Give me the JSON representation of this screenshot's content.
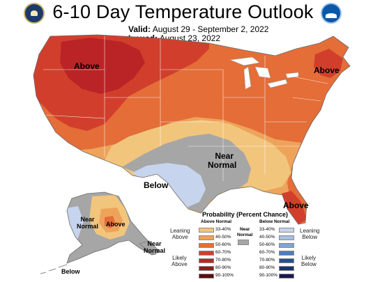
{
  "header": {
    "title": "6-10 Day Temperature Outlook",
    "valid_label": "Valid:",
    "valid_value": "August 29 - September 2, 2022",
    "issued_label": "Issued:",
    "issued_value": "August 23, 2022"
  },
  "logos": {
    "left": "commerce-seal-icon",
    "right": "noaa-logo-icon"
  },
  "map": {
    "labels": {
      "above_west": "Above",
      "above_northeast": "Above",
      "above_florida": "Above",
      "near_normal_central_1": "Near",
      "near_normal_central_2": "Normal",
      "below_texas": "Below",
      "near_normal_alaska_1": "Near",
      "near_normal_alaska_2": "Normal",
      "above_alaska": "Above",
      "near_normal_panhandle_1": "Near",
      "near_normal_panhandle_2": "Normal",
      "below_aleutians": "Below"
    },
    "colors": {
      "above_33_40": "#f2c57c",
      "above_40_50": "#eea35a",
      "above_50_60": "#e46d38",
      "above_60_70": "#d13f2c",
      "above_70_80": "#bb2426",
      "above_80_90": "#8e1a1c",
      "above_90_100": "#5a0e10",
      "near_normal": "#a6a6a6",
      "below_33_40": "#c6d4ee",
      "below_40_50": "#a6c0e2",
      "below_50_60": "#7fa5d4",
      "below_60_70": "#4a7fc0",
      "below_70_80": "#2150a0",
      "below_80_90": "#1b2f7a",
      "below_90_100": "#1a1850"
    }
  },
  "legend": {
    "title": "Probability (Percent Chance)",
    "above_header": "Above Normal",
    "below_header": "Below Normal",
    "near_header_1": "Near",
    "near_header_2": "Normal",
    "above_rows": [
      "33-40%",
      "40-50%",
      "50-60%",
      "60-70%",
      "70-80%",
      "80-90%",
      "90-100%"
    ],
    "below_rows": [
      "33-40%",
      "40-50%",
      "50-60%",
      "60-70%",
      "70-80%",
      "80-90%",
      "90-100%"
    ],
    "leaning_above_1": "Leaning",
    "leaning_above_2": "Above",
    "likely_above_1": "Likely",
    "likely_above_2": "Above",
    "leaning_below_1": "Leaning",
    "leaning_below_2": "Below",
    "likely_below_1": "Likely",
    "likely_below_2": "Below"
  }
}
